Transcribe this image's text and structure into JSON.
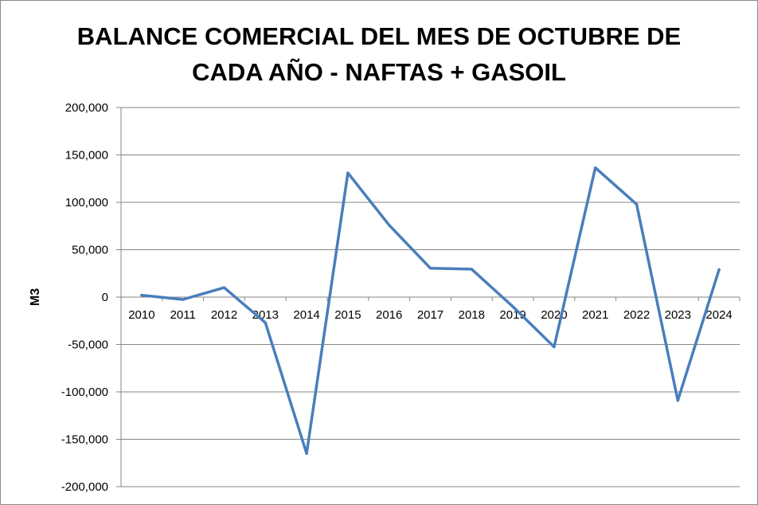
{
  "chart_data": {
    "type": "line",
    "title_lines": [
      "BALANCE COMERCIAL DEL MES DE OCTUBRE DE",
      "CADA AÑO - NAFTAS + GASOIL"
    ],
    "xlabel": "",
    "ylabel": "M3",
    "categories": [
      "2010",
      "2011",
      "2012",
      "2013",
      "2014",
      "2015",
      "2016",
      "2017",
      "2018",
      "2019",
      "2020",
      "2021",
      "2022",
      "2023",
      "2024"
    ],
    "series": [
      {
        "values": [
          2000,
          -2500,
          10000,
          -27000,
          -165000,
          131000,
          76000,
          30500,
          29500,
          -10000,
          -52500,
          136500,
          98000,
          -109000,
          29000
        ],
        "color": "#4a7ebb"
      }
    ],
    "ylim": [
      -200000,
      200000
    ],
    "yticks": [
      200000,
      150000,
      100000,
      50000,
      0,
      -50000,
      -100000,
      -150000,
      -200000
    ],
    "ytick_labels": [
      "200,000",
      "150,000",
      "100,000",
      "50,000",
      "0",
      "-50,000",
      "-100,000",
      "-150,000",
      "-200,000"
    ],
    "grid": true,
    "legend": "none"
  }
}
